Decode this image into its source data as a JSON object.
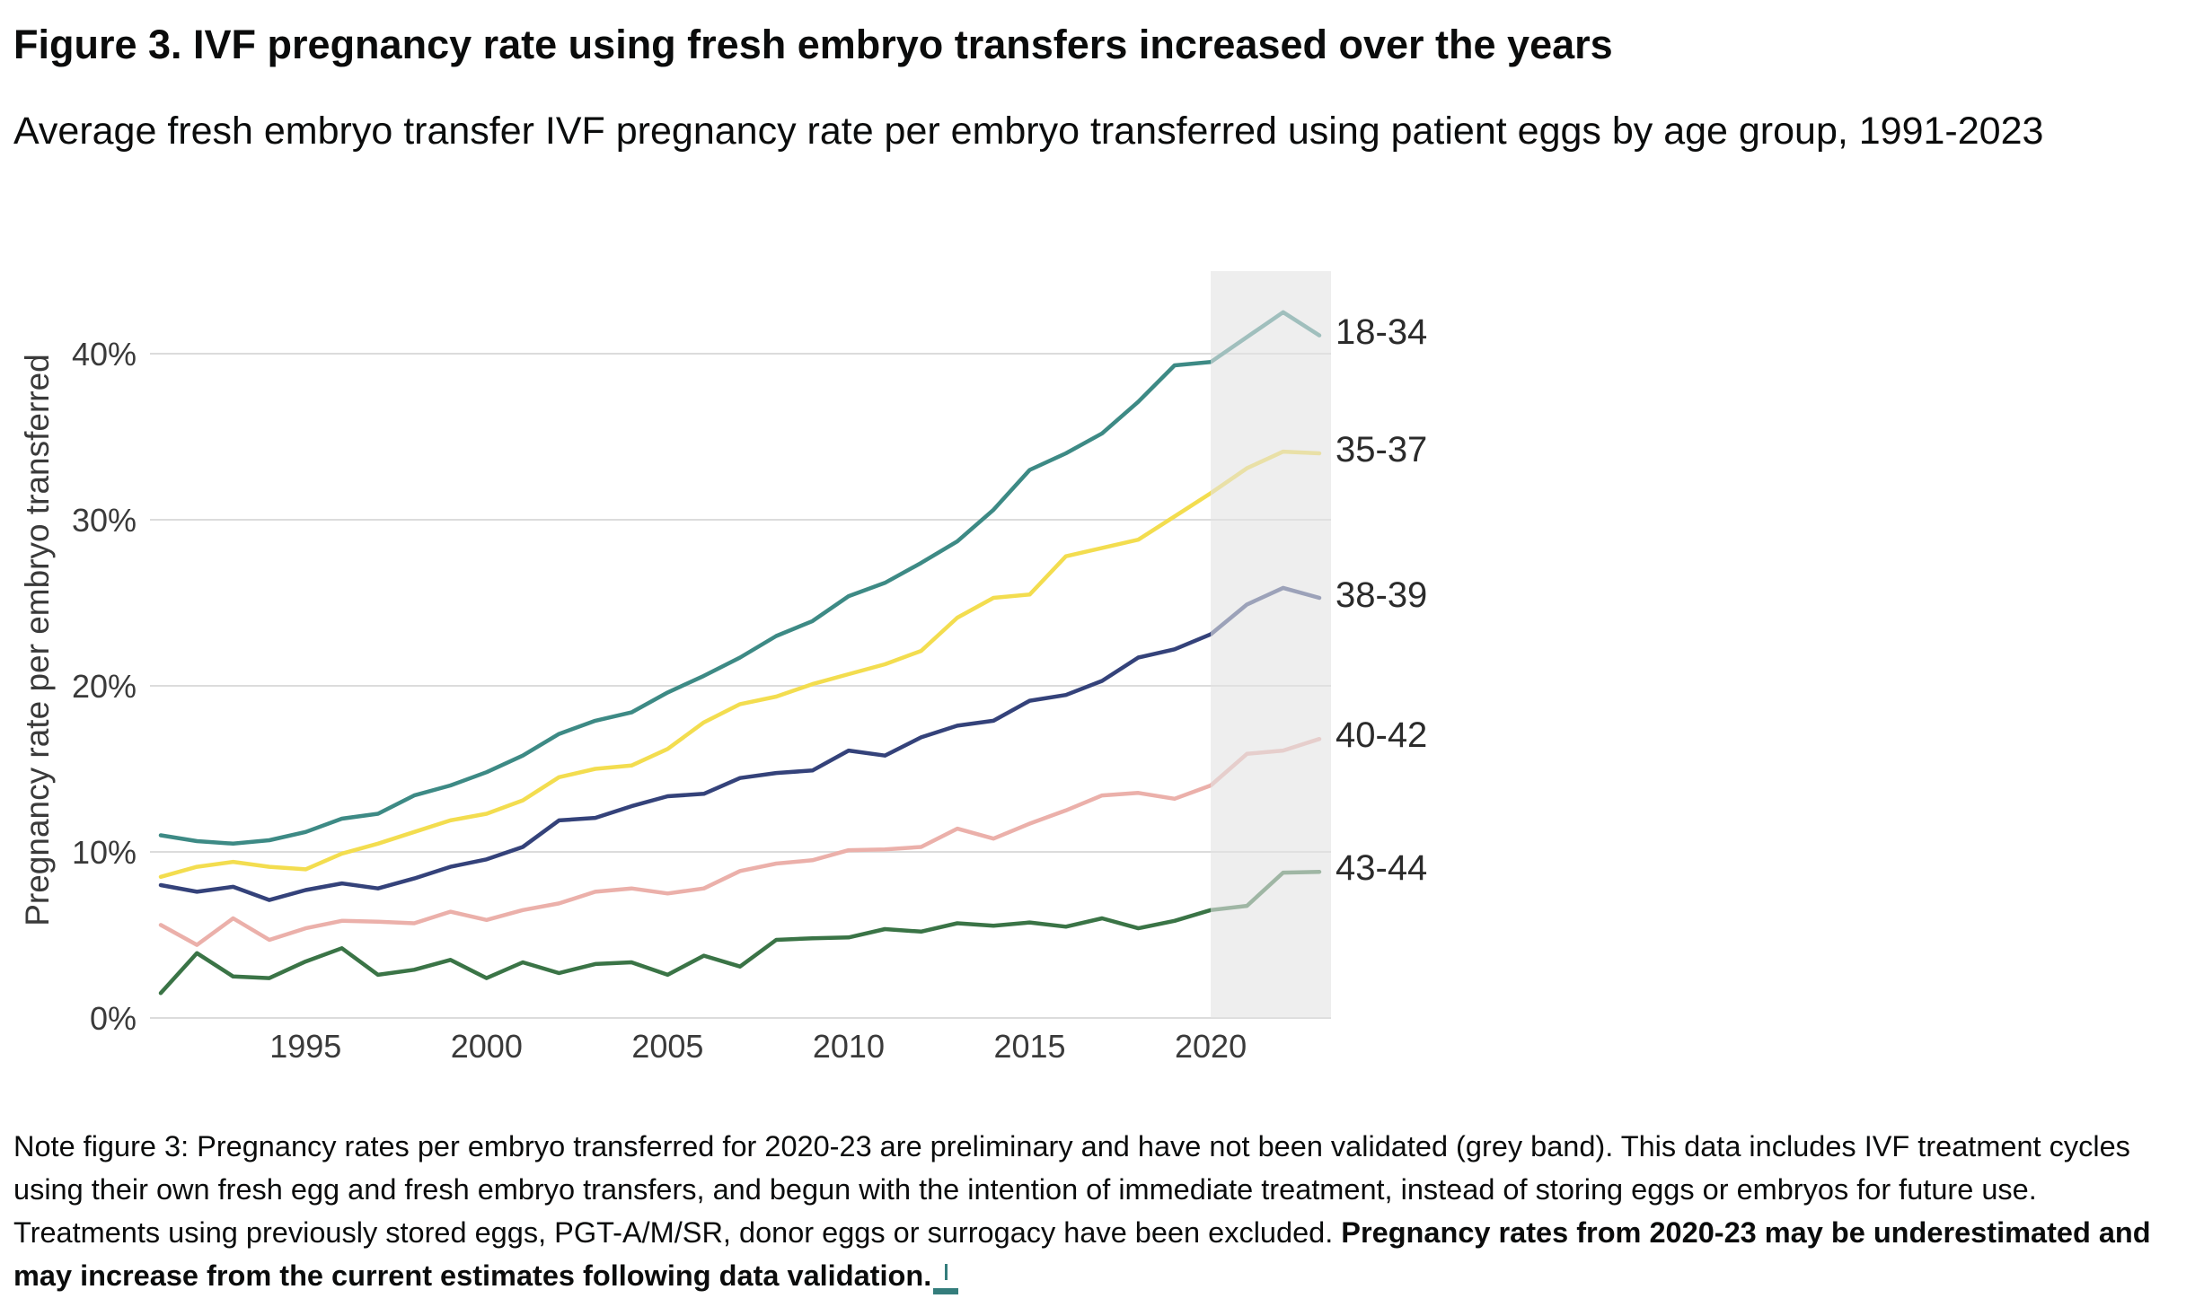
{
  "header": {
    "title": "Figure 3. IVF pregnancy rate using fresh embryo transfers increased over the years",
    "subtitle": "Average fresh embryo transfer IVF pregnancy rate per embryo transferred using patient eggs by age group, 1991-2023"
  },
  "chart_data": {
    "type": "line",
    "title": "Figure 3. IVF pregnancy rate using fresh embryo transfers increased over the years",
    "subtitle": "Average fresh embryo transfer IVF pregnancy rate per embryo transferred using patient eggs by age group, 1991-2023",
    "xlabel": "",
    "ylabel": "Pregnancy rate per embryo transferred",
    "x": [
      1991,
      1992,
      1993,
      1994,
      1995,
      1996,
      1997,
      1998,
      1999,
      2000,
      2001,
      2002,
      2003,
      2004,
      2005,
      2006,
      2007,
      2008,
      2009,
      2010,
      2011,
      2012,
      2013,
      2014,
      2015,
      2016,
      2017,
      2018,
      2019,
      2020,
      2021,
      2022,
      2023
    ],
    "xlim": [
      1991,
      2023
    ],
    "x_ticks": [
      1995,
      2000,
      2005,
      2010,
      2015,
      2020
    ],
    "x_tick_labels": [
      "1995",
      "2000",
      "2005",
      "2010",
      "2015",
      "2020"
    ],
    "ylim": [
      0,
      45
    ],
    "y_ticks": [
      0,
      10,
      20,
      30,
      40
    ],
    "y_tick_labels": [
      "0%",
      "10%",
      "20%",
      "30%",
      "40%"
    ],
    "grid": "horizontal",
    "legend": "direct labels at right end of lines",
    "highlight_band": {
      "from": 2020,
      "to": 2023,
      "color": "#e2e2e2",
      "meaning": "preliminary, not validated"
    },
    "series": [
      {
        "name": "18-34",
        "color": "#3d8a85",
        "values": [
          11.0,
          10.65,
          10.5,
          10.7,
          11.2,
          12.0,
          12.3,
          13.4,
          14.0,
          14.8,
          15.8,
          17.1,
          17.9,
          18.4,
          19.6,
          20.6,
          21.7,
          23.0,
          23.9,
          25.4,
          26.2,
          27.4,
          28.7,
          30.6,
          33.0,
          34.0,
          35.2,
          37.1,
          39.3,
          39.5,
          41.0,
          42.5,
          41.1
        ]
      },
      {
        "name": "35-37",
        "color": "#f3dd4f",
        "values": [
          8.5,
          9.1,
          9.4,
          9.1,
          8.95,
          9.9,
          10.5,
          11.2,
          11.9,
          12.3,
          13.1,
          14.5,
          15.0,
          15.2,
          16.2,
          17.8,
          18.9,
          19.35,
          20.1,
          20.7,
          21.3,
          22.1,
          24.1,
          25.3,
          25.5,
          27.8,
          28.3,
          28.8,
          30.2,
          31.6,
          33.1,
          34.1,
          34.0
        ]
      },
      {
        "name": "38-39",
        "color": "#34427a",
        "values": [
          8.0,
          7.6,
          7.9,
          7.1,
          7.7,
          8.1,
          7.8,
          8.4,
          9.1,
          9.55,
          10.3,
          11.9,
          12.05,
          12.75,
          13.35,
          13.5,
          14.45,
          14.75,
          14.9,
          16.1,
          15.8,
          16.9,
          17.6,
          17.9,
          19.1,
          19.45,
          20.3,
          21.7,
          22.2,
          23.1,
          24.9,
          25.9,
          25.3
        ]
      },
      {
        "name": "40-42",
        "color": "#ebb0aa",
        "values": [
          5.6,
          4.4,
          6.0,
          4.7,
          5.4,
          5.85,
          5.8,
          5.7,
          6.4,
          5.9,
          6.5,
          6.9,
          7.6,
          7.8,
          7.5,
          7.8,
          8.85,
          9.3,
          9.5,
          10.1,
          10.15,
          10.3,
          11.4,
          10.8,
          11.7,
          12.5,
          13.4,
          13.55,
          13.2,
          14.0,
          15.9,
          16.1,
          16.8
        ]
      },
      {
        "name": "43-44",
        "color": "#3a7446",
        "values": [
          1.5,
          3.9,
          2.5,
          2.4,
          3.4,
          4.2,
          2.6,
          2.9,
          3.5,
          2.4,
          3.35,
          2.7,
          3.25,
          3.35,
          2.6,
          3.75,
          3.1,
          4.7,
          4.8,
          4.85,
          5.35,
          5.2,
          5.7,
          5.55,
          5.75,
          5.5,
          6.0,
          5.4,
          5.85,
          6.5,
          6.75,
          8.75,
          8.8
        ]
      }
    ]
  },
  "note": {
    "regular": "Note figure 3: Pregnancy rates per embryo transferred for 2020-23 are preliminary and have not been validated (grey band). This data includes IVF treatment cycles using their own fresh egg and fresh embryo transfers, and begun with the intention of immediate treatment, instead of storing eggs or embryos for future use. Treatments using previously stored eggs, PGT-A/M/SR, donor eggs or surrogacy have been excluded. ",
    "bold": "Pregnancy rates from 2020-23 may be underestimated and may increase from the current estimates following data validation.",
    "link_icon": "footnote-link-icon",
    "link_color": "#347d7c"
  }
}
